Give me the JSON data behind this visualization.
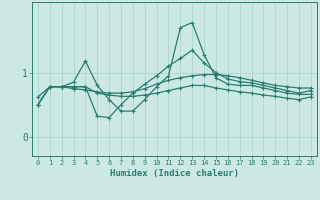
{
  "xlabel": "Humidex (Indice chaleur)",
  "x": [
    0,
    1,
    2,
    3,
    4,
    5,
    6,
    7,
    8,
    9,
    10,
    11,
    12,
    13,
    14,
    15,
    16,
    17,
    18,
    19,
    20,
    21,
    22,
    23
  ],
  "line1_smooth": [
    0.62,
    0.78,
    0.78,
    0.75,
    0.73,
    0.7,
    0.68,
    0.68,
    0.7,
    0.75,
    0.82,
    0.88,
    0.92,
    0.95,
    0.97,
    0.97,
    0.95,
    0.92,
    0.88,
    0.84,
    0.8,
    0.78,
    0.76,
    0.76
  ],
  "line2_peak": [
    0.5,
    0.78,
    0.78,
    0.85,
    1.18,
    0.8,
    0.58,
    0.4,
    0.4,
    0.58,
    0.78,
    0.95,
    1.7,
    1.78,
    1.28,
    0.92,
    0.82,
    0.8,
    0.8,
    0.76,
    0.72,
    0.68,
    0.66,
    0.66
  ],
  "line3_mid": [
    0.5,
    0.78,
    0.78,
    0.78,
    0.78,
    0.32,
    0.3,
    0.5,
    0.68,
    0.82,
    0.95,
    1.1,
    1.22,
    1.35,
    1.15,
    1.0,
    0.9,
    0.86,
    0.84,
    0.8,
    0.76,
    0.72,
    0.68,
    0.72
  ],
  "line4_flat": [
    0.5,
    0.78,
    0.78,
    0.78,
    0.78,
    0.68,
    0.65,
    0.63,
    0.63,
    0.65,
    0.68,
    0.72,
    0.76,
    0.8,
    0.8,
    0.76,
    0.73,
    0.7,
    0.68,
    0.65,
    0.63,
    0.6,
    0.58,
    0.62
  ],
  "line_color": "#2a7d6e",
  "bg_color": "#cce8e4",
  "grid_color": "#a8cfc8",
  "yticks": [
    0,
    1
  ],
  "xlim": [
    -0.5,
    23.5
  ],
  "ylim": [
    -0.3,
    2.1
  ]
}
